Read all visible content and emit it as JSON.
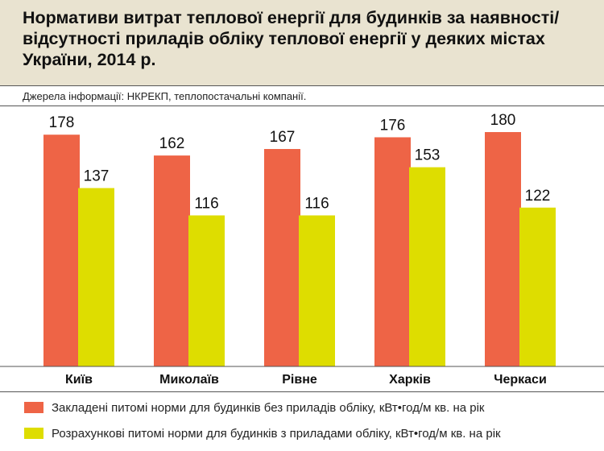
{
  "header": {
    "title": "Нормативи витрат теплової енергії для будинків за наявності/відсутності приладів обліку теплової енергії у деяких містах України, 2014 р.",
    "source": "Джерела інформації: НКРЕКП, теплопостачальні компанії."
  },
  "colors": {
    "header_bg": "#e9e3d0",
    "series_without_meters": "#ee6446",
    "series_with_meters": "#dedd00"
  },
  "chart_data": {
    "type": "bar",
    "title": "Нормативи витрат теплової енергії для будинків за наявності/відсутності приладів обліку теплової енергії у деяких містах України, 2014 р.",
    "categories": [
      "Київ",
      "Миколаїв",
      "Рівне",
      "Харків",
      "Черкаси"
    ],
    "series": [
      {
        "name": "Закладені питомі норми для будинків без приладів обліку, кВт•год/м кв. на рік",
        "values": [
          178,
          162,
          167,
          176,
          180
        ],
        "color": "#ee6446"
      },
      {
        "name": "Розрахункові питомі норми для будинків з приладами обліку, кВт•год/м кв. на рік",
        "values": [
          137,
          116,
          116,
          153,
          122
        ],
        "color": "#dedd00"
      }
    ],
    "ylim": [
      0,
      180
    ],
    "grid": false,
    "legend_position": "bottom",
    "xlabel": "",
    "ylabel": ""
  }
}
